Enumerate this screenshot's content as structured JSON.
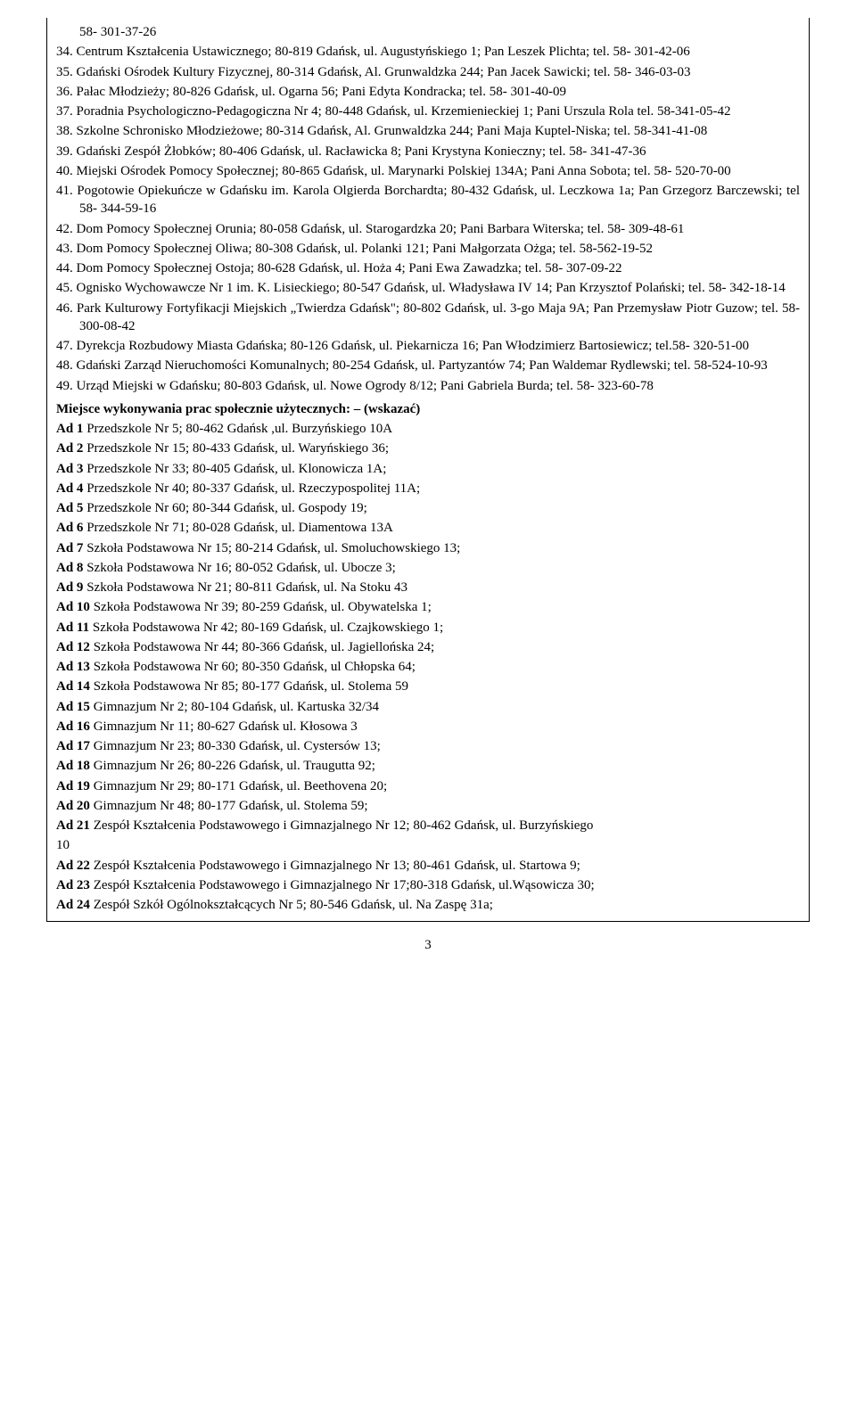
{
  "numbered": [
    {
      "n": "",
      "text": "58- 301-37-26",
      "cont": true
    },
    {
      "n": "34.",
      "text": "Centrum Kształcenia Ustawicznego; 80-819 Gdańsk, ul. Augustyńskiego 1; Pan Leszek Plichta; tel. 58- 301-42-06"
    },
    {
      "n": "35.",
      "text": "Gdański Ośrodek Kultury Fizycznej, 80-314 Gdańsk, Al. Grunwaldzka 244; Pan Jacek Sawicki; tel. 58- 346-03-03"
    },
    {
      "n": "36.",
      "text": "Pałac Młodzieży; 80-826 Gdańsk, ul. Ogarna 56; Pani Edyta Kondracka; tel. 58- 301-40-09"
    },
    {
      "n": "37.",
      "text": "Poradnia Psychologiczno-Pedagogiczna  Nr 4; 80-448 Gdańsk, ul. Krzemienieckiej 1; Pani Urszula Rola tel. 58-341-05-42"
    },
    {
      "n": "38.",
      "text": "Szkolne Schronisko Młodzieżowe; 80-314 Gdańsk, Al. Grunwaldzka 244; Pani Maja Kuptel-Niska; tel. 58-341-41-08"
    },
    {
      "n": "39.",
      "text": "Gdański Zespół Żłobków; 80-406 Gdańsk, ul. Racławicka 8; Pani Krystyna Konieczny; tel. 58- 341-47-36"
    },
    {
      "n": "40.",
      "text": "Miejski Ośrodek Pomocy Społecznej; 80-865 Gdańsk, ul. Marynarki Polskiej 134A; Pani Anna Sobota; tel. 58- 520-70-00"
    },
    {
      "n": "41.",
      "text": "Pogotowie Opiekuńcze w Gdańsku im. Karola Olgierda Borchardta; 80-432 Gdańsk, ul. Leczkowa 1a; Pan Grzegorz Barczewski; tel 58- 344-59-16"
    },
    {
      "n": "42.",
      "text": "Dom Pomocy Społecznej Orunia; 80-058 Gdańsk, ul. Starogardzka 20; Pani Barbara Witerska; tel. 58- 309-48-61"
    },
    {
      "n": "43.",
      "text": "Dom Pomocy Społecznej Oliwa; 80-308 Gdańsk, ul. Polanki 121; Pani Małgorzata Ożga; tel. 58-562-19-52"
    },
    {
      "n": "44.",
      "text": "Dom Pomocy Społecznej Ostoja; 80-628 Gdańsk, ul. Hoża 4; Pani Ewa Zawadzka; tel. 58- 307-09-22"
    },
    {
      "n": "45.",
      "text": "Ognisko Wychowawcze Nr 1 im. K. Lisieckiego; 80-547 Gdańsk, ul. Władysława IV 14; Pan Krzysztof  Polański; tel. 58- 342-18-14"
    },
    {
      "n": "46.",
      "text": "Park Kulturowy Fortyfikacji Miejskich „Twierdza Gdańsk\"; 80-802 Gdańsk, ul. 3-go Maja 9A; Pan Przemysław Piotr Guzow; tel. 58-300-08-42"
    },
    {
      "n": "47.",
      "text": "Dyrekcja Rozbudowy Miasta Gdańska; 80-126 Gdańsk, ul. Piekarnicza 16; Pan Włodzimierz Bartosiewicz; tel.58- 320-51-00"
    },
    {
      "n": "48.",
      "text": "Gdański Zarząd Nieruchomości Komunalnych; 80-254 Gdańsk, ul. Partyzantów 74; Pan Waldemar Rydlewski; tel. 58-524-10-93"
    },
    {
      "n": "49.",
      "text": "Urząd Miejski w Gdańsku; 80-803 Gdańsk, ul. Nowe Ogrody 8/12; Pani Gabriela Burda; tel. 58- 323-60-78"
    }
  ],
  "heading": "Miejsce wykonywania prac społecznie użytecznych: – (wskazać)",
  "ad": [
    {
      "label": "Ad 1",
      "text": "Przedszkole Nr 5; 80-462 Gdańsk ,ul. Burzyńskiego 10A"
    },
    {
      "label": "Ad 2",
      "text": "Przedszkole Nr 15; 80-433 Gdańsk, ul. Waryńskiego 36;"
    },
    {
      "label": "Ad 3",
      "text": "Przedszkole Nr 33; 80-405 Gdańsk, ul. Klonowicza 1A;"
    },
    {
      "label": "Ad 4",
      "text": "Przedszkole Nr  40; 80-337 Gdańsk, ul. Rzeczypospolitej 11A;"
    },
    {
      "label": "Ad 5",
      "text": "Przedszkole Nr 60; 80-344 Gdańsk, ul. Gospody 19;"
    },
    {
      "label": "Ad 6",
      "text": "Przedszkole Nr 71; 80-028 Gdańsk, ul. Diamentowa 13A"
    },
    {
      "label": "Ad 7",
      "text": "Szkoła Podstawowa Nr 15; 80-214 Gdańsk, ul. Smoluchowskiego 13;"
    },
    {
      "label": "Ad 8",
      "text": "Szkoła Podstawowa Nr 16; 80-052 Gdańsk, ul. Ubocze 3;"
    },
    {
      "label": "Ad 9",
      "text": "Szkoła  Podstawowa Nr 21; 80-811 Gdańsk, ul. Na Stoku 43"
    },
    {
      "label": "Ad 10",
      "text": "Szkoła Podstawowa Nr 39; 80-259 Gdańsk, ul. Obywatelska 1;"
    },
    {
      "label": "Ad 11",
      "text": "Szkoła Podstawowa Nr 42; 80-169 Gdańsk, ul. Czajkowskiego 1;"
    },
    {
      "label": "Ad 12",
      "text": "Szkoła Podstawowa Nr 44; 80-366 Gdańsk, ul. Jagiellońska 24;"
    },
    {
      "label": "Ad 13",
      "text": "Szkoła Podstawowa Nr 60; 80-350 Gdańsk, ul Chłopska 64;"
    },
    {
      "label": "Ad 14",
      "text": "Szkoła Podstawowa Nr 85; 80-177 Gdańsk, ul. Stolema 59"
    },
    {
      "label": "Ad 15",
      "text": "Gimnazjum Nr 2; 80-104 Gdańsk, ul. Kartuska 32/34"
    },
    {
      "label": "Ad 16",
      "text": "Gimnazjum Nr 11; 80-627 Gdańsk ul. Kłosowa 3"
    },
    {
      "label": "Ad 17",
      "text": "Gimnazjum Nr 23; 80-330 Gdańsk, ul. Cystersów 13;"
    },
    {
      "label": "Ad 18",
      "text": "Gimnazjum Nr 26; 80-226 Gdańsk, ul. Traugutta 92;"
    },
    {
      "label": "Ad 19",
      "text": "Gimnazjum Nr 29; 80-171 Gdańsk, ul. Beethovena 20;"
    },
    {
      "label": "Ad 20",
      "text": "Gimnazjum Nr 48; 80-177 Gdańsk, ul. Stolema 59;"
    },
    {
      "label": "Ad 21",
      "text": "Zespół Kształcenia Podstawowego i Gimnazjalnego Nr 12; 80-462 Gdańsk, ul. Burzyńskiego",
      "sub": "10"
    },
    {
      "label": "Ad 22",
      "text": "Zespół Kształcenia Podstawowego i Gimnazjalnego Nr 13; 80-461 Gdańsk, ul. Startowa 9;"
    },
    {
      "label": "Ad 23",
      "text": "Zespół Kształcenia Podstawowego i Gimnazjalnego Nr 17;80-318 Gdańsk, ul.Wąsowicza 30;"
    },
    {
      "label": "Ad 24",
      "text": "Zespół Szkół Ogólnokształcących Nr 5; 80-546 Gdańsk, ul. Na Zaspę 31a;"
    }
  ],
  "page_number": "3"
}
